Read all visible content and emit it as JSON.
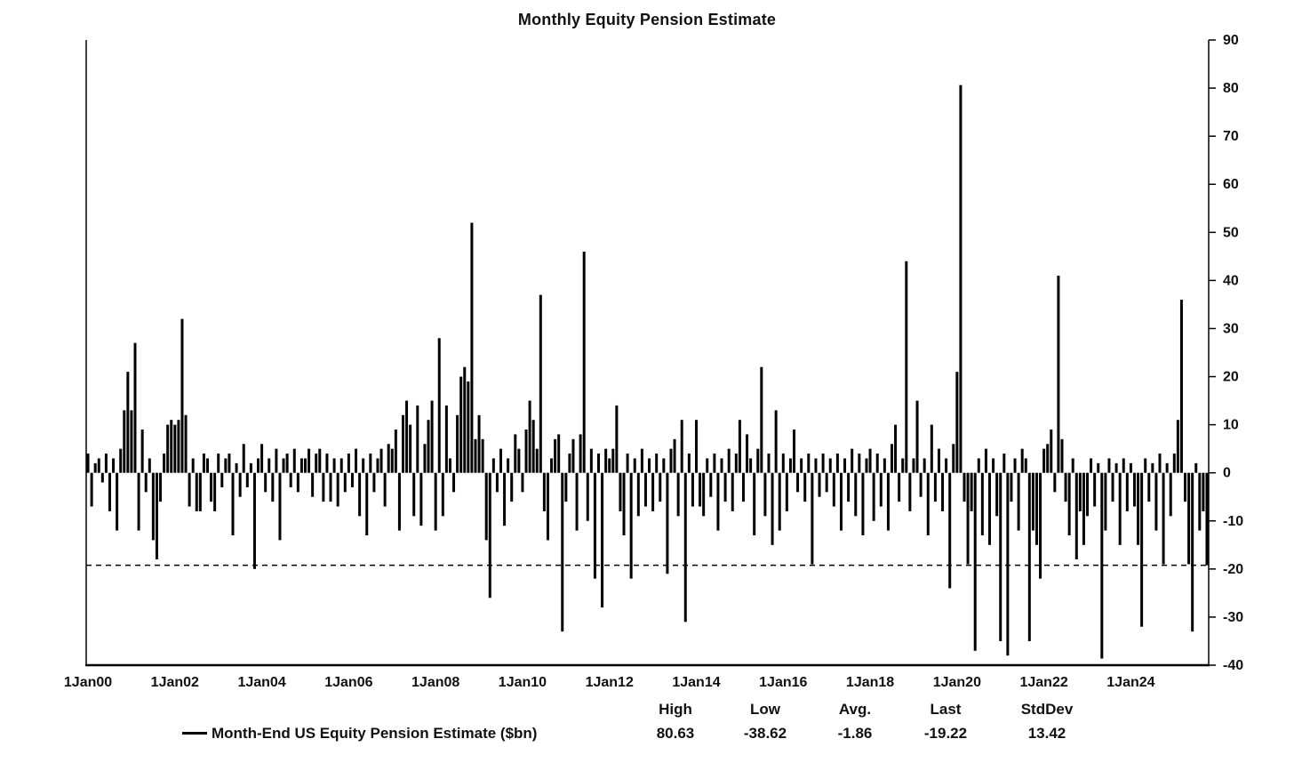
{
  "chart_data": {
    "type": "bar",
    "title": "Monthly Equity Pension Estimate",
    "series_name": "Month-End US Equity Pension Estimate ($bn)",
    "frequency": "monthly",
    "start": "Jan 2000",
    "end": "Oct 2025",
    "ylim": [
      -40,
      90
    ],
    "y_tick_step": 10,
    "reference_line": -19.22,
    "bar_color": "#000000",
    "grid": false,
    "legend_position": "bottom",
    "x_tick_labels": [
      "1Jan00",
      "1Jan02",
      "1Jan04",
      "1Jan06",
      "1Jan08",
      "1Jan10",
      "1Jan12",
      "1Jan14",
      "1Jan16",
      "1Jan18",
      "1Jan20",
      "1Jan22",
      "1Jan24"
    ],
    "values": [
      4,
      -7,
      2,
      3,
      -2,
      4,
      -8,
      3,
      -12,
      5,
      13,
      21,
      13,
      27,
      -12,
      9,
      -4,
      3,
      -14,
      -18,
      -6,
      4,
      10,
      11,
      10,
      11,
      32,
      12,
      -7,
      3,
      -8,
      -8,
      4,
      3,
      -6,
      -8,
      4,
      -3,
      3,
      4,
      -13,
      2,
      -5,
      6,
      -3,
      2,
      -20,
      3,
      6,
      -4,
      3,
      -6,
      5,
      -14,
      3,
      4,
      -3,
      5,
      -4,
      3,
      3,
      5,
      -5,
      4,
      5,
      -6,
      4,
      -6,
      3,
      -7,
      3,
      -4,
      4,
      -3,
      5,
      -9,
      3,
      -13,
      4,
      -4,
      3,
      5,
      -7,
      6,
      5,
      9,
      -12,
      12,
      15,
      10,
      -9,
      14,
      -11,
      6,
      11,
      15,
      -12,
      28,
      -9,
      14,
      3,
      -4,
      12,
      20,
      22,
      19,
      52,
      7,
      12,
      7,
      -14,
      -26,
      3,
      -4,
      5,
      -11,
      3,
      -6,
      8,
      5,
      -4,
      9,
      15,
      11,
      5,
      37,
      -8,
      -14,
      3,
      7,
      8,
      -33,
      -6,
      4,
      7,
      -12,
      8,
      46,
      -10,
      5,
      -22,
      4,
      -28,
      5,
      3,
      5,
      14,
      -8,
      -13,
      4,
      -22,
      3,
      -9,
      5,
      -7,
      3,
      -8,
      4,
      -6,
      3,
      -21,
      5,
      7,
      -9,
      11,
      -31,
      4,
      -7,
      11,
      -7,
      -9,
      3,
      -5,
      4,
      -12,
      3,
      -6,
      5,
      -8,
      4,
      11,
      -6,
      8,
      3,
      -13,
      5,
      22,
      -9,
      4,
      -15,
      13,
      -12,
      4,
      -8,
      3,
      9,
      -4,
      3,
      -6,
      4,
      -19,
      3,
      -5,
      4,
      -4,
      3,
      -7,
      4,
      -12,
      3,
      -6,
      5,
      -9,
      4,
      -13,
      3,
      5,
      -10,
      4,
      -7,
      3,
      -12,
      6,
      10,
      -6,
      3,
      44,
      -8,
      3,
      15,
      -5,
      3,
      -13,
      10,
      -6,
      5,
      -8,
      3,
      -24,
      6,
      21,
      80.63,
      -6,
      -19,
      -8,
      -37,
      3,
      -13,
      5,
      -15,
      3,
      -9,
      -35,
      4,
      -38,
      -6,
      3,
      -12,
      5,
      3,
      -35,
      -12,
      -15,
      -22,
      5,
      6,
      9,
      -4,
      41,
      7,
      -6,
      -13,
      3,
      -18,
      -8,
      -15,
      -9,
      3,
      -7,
      2,
      -38.62,
      -12,
      3,
      -6,
      2,
      -15,
      3,
      -8,
      2,
      -7,
      -15,
      -32,
      3,
      -6,
      2,
      -12,
      4,
      -19,
      2,
      -9,
      4,
      11,
      36,
      -6,
      -19,
      -33,
      2,
      -12,
      -8,
      -19.22
    ]
  },
  "legend": {
    "label": "Month-End US Equity Pension Estimate ($bn)"
  },
  "stats": [
    {
      "label": "High",
      "value": "80.63"
    },
    {
      "label": "Low",
      "value": "-38.62"
    },
    {
      "label": "Avg.",
      "value": "-1.86"
    },
    {
      "label": "Last",
      "value": "-19.22"
    },
    {
      "label": "StdDev",
      "value": "13.42"
    }
  ]
}
